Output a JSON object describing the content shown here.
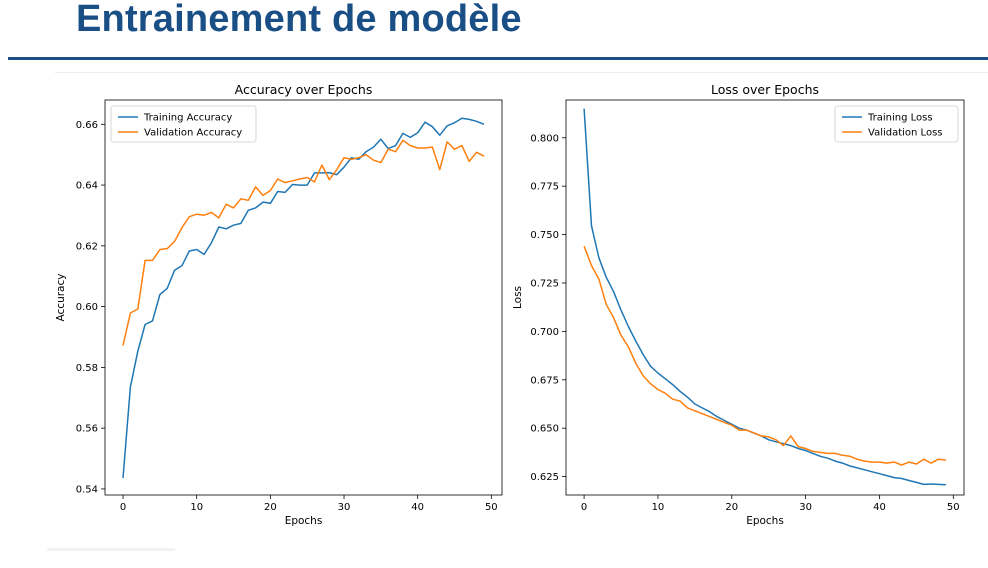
{
  "slide": {
    "title": "Entrainement de modèle"
  },
  "chart_data": [
    {
      "type": "line",
      "title": "Accuracy over Epochs",
      "xlabel": "Epochs",
      "ylabel": "Accuracy",
      "xlim": [
        -2.45,
        51.45
      ],
      "ylim": [
        0.538,
        0.668
      ],
      "xticks": [
        0,
        10,
        20,
        30,
        40,
        50
      ],
      "yticks": [
        0.54,
        0.56,
        0.58,
        0.6,
        0.62,
        0.64,
        0.66
      ],
      "ytick_labels": [
        "0.54",
        "0.56",
        "0.58",
        "0.60",
        "0.62",
        "0.64",
        "0.66"
      ],
      "grid": false,
      "legend": "upper-left",
      "x": [
        0,
        1,
        2,
        3,
        4,
        5,
        6,
        7,
        8,
        9,
        10,
        11,
        12,
        13,
        14,
        15,
        16,
        17,
        18,
        19,
        20,
        21,
        22,
        23,
        24,
        25,
        26,
        27,
        28,
        29,
        30,
        31,
        32,
        33,
        34,
        35,
        36,
        37,
        38,
        39,
        40,
        41,
        42,
        43,
        44,
        45,
        46,
        47,
        48,
        49
      ],
      "series": [
        {
          "name": "Training Accuracy",
          "color": "#1f77b4",
          "values": [
            0.5436,
            0.5736,
            0.5853,
            0.5941,
            0.5953,
            0.604,
            0.606,
            0.612,
            0.6135,
            0.6183,
            0.6188,
            0.6172,
            0.621,
            0.6262,
            0.6256,
            0.6268,
            0.6274,
            0.6317,
            0.6325,
            0.6344,
            0.634,
            0.6379,
            0.6376,
            0.6402,
            0.64,
            0.64,
            0.644,
            0.644,
            0.6441,
            0.6434,
            0.6459,
            0.649,
            0.6485,
            0.651,
            0.6525,
            0.6551,
            0.652,
            0.653,
            0.657,
            0.6557,
            0.6572,
            0.6607,
            0.6592,
            0.6564,
            0.6595,
            0.6605,
            0.662,
            0.6616,
            0.661,
            0.66
          ]
        },
        {
          "name": "Validation Accuracy",
          "color": "#ff7f0e",
          "values": [
            0.5872,
            0.5979,
            0.5992,
            0.6152,
            0.6152,
            0.6188,
            0.6191,
            0.6215,
            0.626,
            0.6296,
            0.6304,
            0.6301,
            0.631,
            0.6292,
            0.6337,
            0.6325,
            0.6355,
            0.635,
            0.6394,
            0.6366,
            0.6382,
            0.642,
            0.6408,
            0.6414,
            0.642,
            0.6425,
            0.641,
            0.6466,
            0.6418,
            0.645,
            0.649,
            0.6485,
            0.649,
            0.65,
            0.6482,
            0.6474,
            0.6518,
            0.651,
            0.6547,
            0.653,
            0.6522,
            0.6522,
            0.6525,
            0.6451,
            0.6542,
            0.6518,
            0.653,
            0.6478,
            0.6508,
            0.6495
          ]
        }
      ]
    },
    {
      "type": "line",
      "title": "Loss over Epochs",
      "xlabel": "Epochs",
      "ylabel": "Loss",
      "xlim": [
        -2.45,
        51.45
      ],
      "ylim": [
        0.6155,
        0.8195
      ],
      "xticks": [
        0,
        10,
        20,
        30,
        40,
        50
      ],
      "yticks": [
        0.625,
        0.65,
        0.675,
        0.7,
        0.725,
        0.75,
        0.775,
        0.8
      ],
      "ytick_labels": [
        "0.625",
        "0.650",
        "0.675",
        "0.700",
        "0.725",
        "0.750",
        "0.775",
        "0.800"
      ],
      "grid": false,
      "legend": "upper-right",
      "x": [
        0,
        1,
        2,
        3,
        4,
        5,
        6,
        7,
        8,
        9,
        10,
        11,
        12,
        13,
        14,
        15,
        16,
        17,
        18,
        19,
        20,
        21,
        22,
        23,
        24,
        25,
        26,
        27,
        28,
        29,
        30,
        31,
        32,
        33,
        34,
        35,
        36,
        37,
        38,
        39,
        40,
        41,
        42,
        43,
        44,
        45,
        46,
        47,
        48,
        49
      ],
      "series": [
        {
          "name": "Training Loss",
          "color": "#1f77b4",
          "values": [
            0.815,
            0.7545,
            0.738,
            0.728,
            0.7205,
            0.711,
            0.7025,
            0.695,
            0.688,
            0.682,
            0.6785,
            0.6755,
            0.6725,
            0.669,
            0.666,
            0.6625,
            0.6605,
            0.6585,
            0.656,
            0.654,
            0.652,
            0.65,
            0.649,
            0.6475,
            0.646,
            0.644,
            0.643,
            0.642,
            0.641,
            0.6395,
            0.6385,
            0.637,
            0.6355,
            0.6345,
            0.633,
            0.632,
            0.6305,
            0.6295,
            0.6285,
            0.6275,
            0.6265,
            0.6255,
            0.6245,
            0.624,
            0.623,
            0.622,
            0.621,
            0.6212,
            0.621,
            0.6208
          ]
        },
        {
          "name": "Validation Loss",
          "color": "#ff7f0e",
          "values": [
            0.744,
            0.734,
            0.727,
            0.714,
            0.707,
            0.698,
            0.692,
            0.6835,
            0.677,
            0.673,
            0.67,
            0.668,
            0.665,
            0.664,
            0.6605,
            0.659,
            0.6575,
            0.656,
            0.6545,
            0.653,
            0.6515,
            0.649,
            0.649,
            0.6475,
            0.646,
            0.6455,
            0.644,
            0.641,
            0.646,
            0.6405,
            0.6395,
            0.638,
            0.6375,
            0.637,
            0.637,
            0.636,
            0.6355,
            0.634,
            0.633,
            0.6325,
            0.6325,
            0.632,
            0.6325,
            0.631,
            0.6325,
            0.6315,
            0.634,
            0.632,
            0.634,
            0.6335
          ]
        }
      ]
    }
  ]
}
